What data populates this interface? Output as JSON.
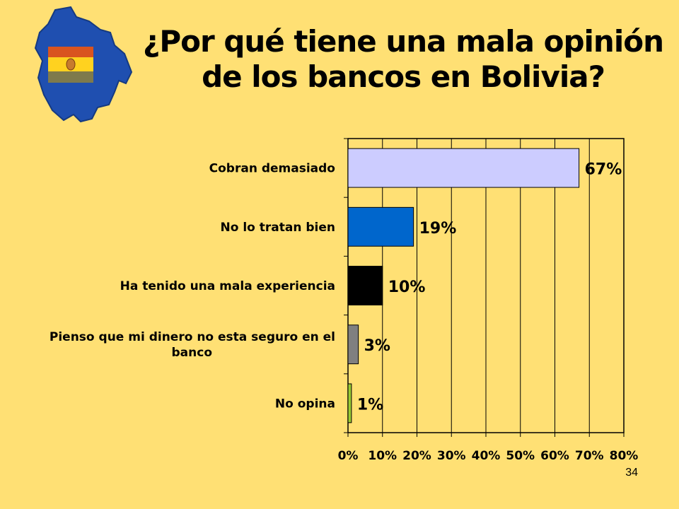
{
  "slide": {
    "title_line1": "¿Por qué tiene una mala opinión",
    "title_line2": "de los bancos en Bolivia?",
    "number": "34"
  },
  "colors": {
    "background": "#FFE074",
    "map_blue": "#1F4FB0",
    "flag_red": "#D9541F",
    "flag_yellow": "#FFD21F",
    "flag_green": "#7E7A4C"
  },
  "chart_data": {
    "type": "bar",
    "orientation": "horizontal",
    "categories": [
      "Cobran demasiado",
      "No lo tratan bien",
      "Ha tenido una mala experiencia",
      "Pienso que mi dinero no esta seguro en el banco",
      "No opina"
    ],
    "category_label_lines": [
      [
        "Cobran demasiado"
      ],
      [
        "No lo tratan bien"
      ],
      [
        "Ha tenido una mala experiencia"
      ],
      [
        "Pienso que mi dinero no esta seguro en el",
        "banco"
      ],
      [
        "No opina"
      ]
    ],
    "values": [
      67,
      19,
      10,
      3,
      1
    ],
    "value_labels": [
      "67%",
      "19%",
      "10%",
      "3%",
      "1%"
    ],
    "bar_colors": [
      "#CCCCFF",
      "#0066CC",
      "#000000",
      "#808080",
      "#99CC33"
    ],
    "xlim": [
      0,
      80
    ],
    "xticks": [
      0,
      10,
      20,
      30,
      40,
      50,
      60,
      70,
      80
    ],
    "xtick_labels": [
      "0%",
      "10%",
      "20%",
      "30%",
      "40%",
      "50%",
      "60%",
      "70%",
      "80%"
    ],
    "grid": "vertical",
    "legend": "none"
  }
}
